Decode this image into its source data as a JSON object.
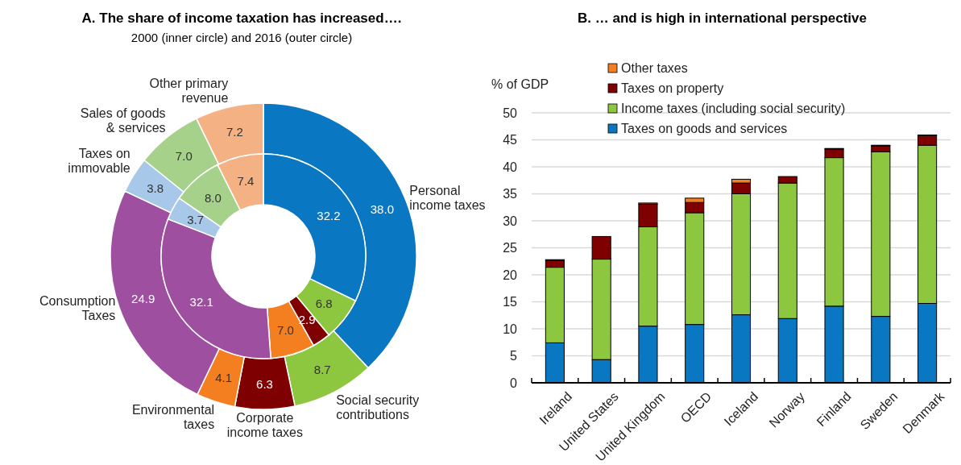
{
  "chart_data": [
    {
      "type": "donut",
      "title": "A. The share of income taxation has increased….",
      "subtitle": "2000 (inner circle) and 2016 (outer circle)",
      "categories": [
        "Personal income taxes",
        "Social security contributions",
        "Corporate income taxes",
        "Environmental taxes",
        "Consumption Taxes",
        "Taxes on immovable",
        "Sales of goods & services",
        "Other primary revenue"
      ],
      "colors": [
        "#0a77c2",
        "#8dc63f",
        "#7f0000",
        "#f47f20",
        "#9e4fa0",
        "#a7c8e8",
        "#a6d18b",
        "#f4b183"
      ],
      "series": [
        {
          "values": [
            38.0,
            8.7,
            6.3,
            4.1,
            24.9,
            3.8,
            7.0,
            7.2
          ],
          "value_labels": [
            "38.0",
            "8.7",
            "6.3",
            "4.1",
            "24.9",
            "3.8",
            "7.0",
            "7.2"
          ]
        },
        {
          "values": [
            32.2,
            6.8,
            2.9,
            7.0,
            32.1,
            3.7,
            8.0,
            7.4
          ],
          "value_labels": [
            "32.2",
            "6.8",
            "2.9",
            "7.0",
            "32.1",
            "3.7",
            "8.0",
            "7.4"
          ]
        }
      ]
    },
    {
      "type": "bar",
      "title": "B. … and is high in international perspective",
      "ylabel": "% of GDP",
      "categories": [
        "Ireland",
        "United States",
        "United Kingdom",
        "OECD",
        "Iceland",
        "Norway",
        "Finland",
        "Sweden",
        "Denmark"
      ],
      "stacked": true,
      "ylim": [
        0,
        50
      ],
      "yticks": [
        0,
        5,
        10,
        15,
        20,
        25,
        30,
        35,
        40,
        45,
        50
      ],
      "grid": "y",
      "legend": "top left",
      "series": [
        {
          "name": "Taxes on goods and services",
          "color": "#0a77c2",
          "values": [
            7.4,
            4.3,
            10.5,
            10.8,
            12.6,
            11.9,
            14.2,
            12.3,
            14.7
          ]
        },
        {
          "name": "Income taxes (including social security)",
          "color": "#8dc63f",
          "values": [
            14.0,
            18.6,
            18.4,
            20.7,
            22.4,
            25.1,
            27.5,
            30.5,
            29.3
          ]
        },
        {
          "name": "Taxes on property",
          "color": "#7f0000",
          "values": [
            1.3,
            4.2,
            4.2,
            1.9,
            2.0,
            1.2,
            1.6,
            1.1,
            1.8
          ]
        },
        {
          "name": "Other taxes",
          "color": "#f47f20",
          "values": [
            0.1,
            0,
            0.2,
            0.8,
            0.7,
            0,
            0.1,
            0.1,
            0.1
          ]
        }
      ]
    }
  ]
}
